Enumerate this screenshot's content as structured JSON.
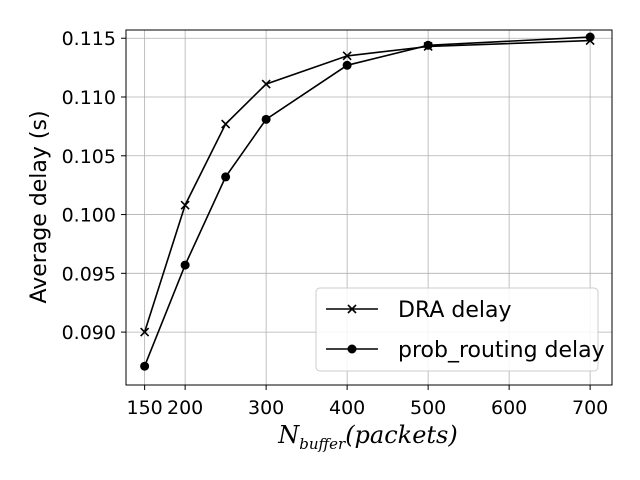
{
  "chart_data": {
    "type": "line",
    "title": "",
    "xlabel": "N_{buffer}(packets)",
    "xlabel_main": "N",
    "xlabel_sub": "buffer",
    "xlabel_rest": "(packets)",
    "ylabel": "Average delay (s)",
    "x": [
      150,
      200,
      250,
      300,
      400,
      500,
      700
    ],
    "xlim": [
      127,
      727
    ],
    "ylim": [
      0.0855,
      0.1157
    ],
    "xticks": [
      150,
      200,
      300,
      400,
      500,
      600,
      700
    ],
    "xtick_labels": [
      "150",
      "200",
      "300",
      "400",
      "500",
      "600",
      "700"
    ],
    "yticks": [
      0.09,
      0.095,
      0.1,
      0.105,
      0.11,
      0.115
    ],
    "ytick_labels": [
      "0.090",
      "0.095",
      "0.100",
      "0.105",
      "0.110",
      "0.115"
    ],
    "grid": true,
    "legend_position": "lower-right",
    "series": [
      {
        "name": "DRA delay",
        "marker": "x",
        "color": "#000000",
        "values": [
          0.09,
          0.1008,
          0.1077,
          0.1111,
          0.1135,
          0.1143,
          0.1148
        ]
      },
      {
        "name": "prob_routing delay",
        "marker": "circle",
        "color": "#000000",
        "values": [
          0.0871,
          0.0957,
          0.1032,
          0.1081,
          0.1127,
          0.1144,
          0.1151
        ]
      }
    ]
  }
}
